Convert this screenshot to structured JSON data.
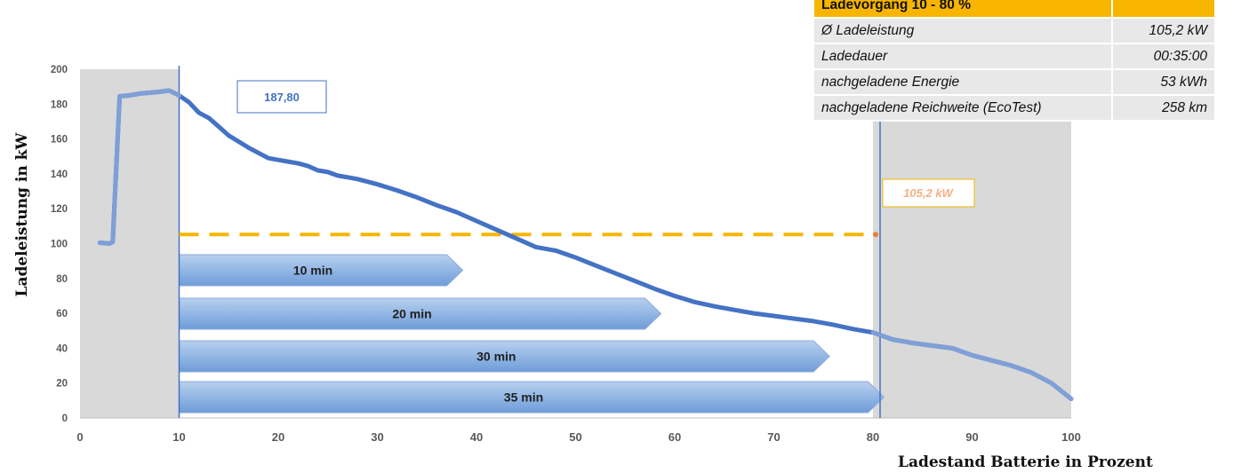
{
  "chart_data": {
    "type": "line",
    "xlabel": "Ladestand Batterie in Prozent",
    "ylabel": "Ladeleistung in kW",
    "xlim": [
      0,
      100
    ],
    "ylim": [
      0,
      200
    ],
    "x_ticks": [
      "0",
      "10",
      "20",
      "30",
      "40",
      "50",
      "60",
      "70",
      "80",
      "90",
      "100"
    ],
    "y_ticks": [
      "0",
      "20",
      "40",
      "60",
      "80",
      "100",
      "120",
      "140",
      "160",
      "180",
      "200"
    ],
    "grid": false,
    "shaded_regions": [
      [
        0,
        10
      ],
      [
        80,
        100
      ]
    ],
    "vertical_lines": [
      10,
      80
    ],
    "series": [
      {
        "color": "#4472c4",
        "x": [
          2,
          3,
          3.3,
          4,
          5,
          6,
          7,
          8,
          9,
          10,
          11,
          12,
          13,
          14,
          15,
          16,
          17,
          18,
          19,
          20,
          21,
          22,
          23,
          24,
          25,
          26,
          27,
          28,
          29,
          30,
          32,
          34,
          36,
          38,
          40,
          42,
          44,
          46,
          48,
          50,
          52,
          54,
          56,
          58,
          60,
          62,
          64,
          66,
          68,
          70,
          72,
          74,
          76,
          78,
          80,
          82,
          84,
          86,
          88,
          90,
          92,
          94,
          96,
          98,
          100
        ],
        "y": [
          100.5,
          100,
          101,
          184.5,
          185,
          186,
          186.5,
          187,
          187.8,
          185,
          181,
          175,
          172,
          167,
          162,
          158.5,
          155,
          152,
          149,
          148,
          147,
          146,
          144.5,
          142,
          141,
          139,
          138,
          137,
          135.5,
          134,
          130.5,
          126.5,
          122,
          118,
          113,
          108,
          103,
          98,
          96,
          92,
          87.5,
          83,
          78.5,
          74,
          70,
          66.5,
          64,
          62,
          60,
          58.5,
          57,
          55.5,
          53.5,
          51,
          49,
          45,
          43,
          41.5,
          40,
          36,
          33,
          30,
          26,
          20,
          11
        ]
      }
    ],
    "reference_line": {
      "value": 105.2,
      "x_range": [
        10,
        80
      ],
      "color": "#f7b500",
      "style": "dashed"
    },
    "annotations": [
      {
        "text": "187,80",
        "color": "#4472c4"
      },
      {
        "text": "105,2 kW",
        "color": "#f4b183"
      }
    ],
    "time_bars": [
      {
        "label": "10 min",
        "end": 37
      },
      {
        "label": "20 min",
        "end": 57
      },
      {
        "label": "30 min",
        "end": 74
      },
      {
        "label": "35 min",
        "end": 79.5
      }
    ]
  },
  "info_table": {
    "header": "Ladevorgang 10 - 80 %",
    "rows": [
      {
        "label": "Ø Ladeleistung",
        "value": "105,2 kW"
      },
      {
        "label": "Ladedauer",
        "value": "00:35:00"
      },
      {
        "label": "nachgeladene Energie",
        "value": "53 kWh"
      },
      {
        "label": "nachgeladene Reichweite (EcoTest)",
        "value": "258 km"
      }
    ]
  }
}
